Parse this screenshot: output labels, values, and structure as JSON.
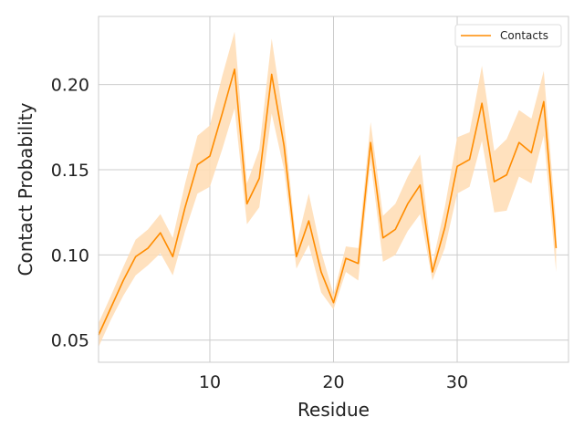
{
  "chart_data": {
    "type": "line",
    "xlabel": "Residue",
    "ylabel": "Contact Probability",
    "xlim": [
      1,
      39
    ],
    "ylim": [
      0.037,
      0.24
    ],
    "xticks": [
      10,
      20,
      30
    ],
    "xtick_labels": [
      "10",
      "20",
      "30"
    ],
    "yticks": [
      0.05,
      0.1,
      0.15,
      0.2
    ],
    "ytick_labels": [
      "0.05",
      "0.10",
      "0.15",
      "0.20"
    ],
    "grid": true,
    "legend_position": "top-right",
    "series": [
      {
        "name": "Contacts",
        "color": "#ff8c00",
        "band_color": "#ffdcb3",
        "x": [
          1,
          2,
          3,
          4,
          5,
          6,
          7,
          8,
          9,
          10,
          11,
          12,
          13,
          14,
          15,
          16,
          17,
          18,
          19,
          20,
          21,
          22,
          23,
          24,
          25,
          26,
          27,
          28,
          29,
          30,
          31,
          32,
          33,
          34,
          35,
          36,
          37,
          38
        ],
        "values": [
          0.053,
          0.069,
          0.085,
          0.099,
          0.104,
          0.113,
          0.099,
          0.128,
          0.153,
          0.158,
          0.183,
          0.209,
          0.13,
          0.145,
          0.206,
          0.164,
          0.099,
          0.12,
          0.09,
          0.072,
          0.098,
          0.095,
          0.166,
          0.11,
          0.115,
          0.13,
          0.141,
          0.09,
          0.116,
          0.152,
          0.156,
          0.189,
          0.143,
          0.147,
          0.166,
          0.16,
          0.19,
          0.104
        ],
        "lower": [
          0.046,
          0.062,
          0.076,
          0.088,
          0.094,
          0.101,
          0.088,
          0.114,
          0.136,
          0.14,
          0.162,
          0.186,
          0.118,
          0.128,
          0.183,
          0.15,
          0.092,
          0.106,
          0.078,
          0.068,
          0.09,
          0.085,
          0.155,
          0.096,
          0.1,
          0.114,
          0.124,
          0.085,
          0.104,
          0.136,
          0.14,
          0.167,
          0.125,
          0.126,
          0.146,
          0.142,
          0.17,
          0.09
        ],
        "upper": [
          0.06,
          0.076,
          0.093,
          0.109,
          0.115,
          0.124,
          0.11,
          0.142,
          0.17,
          0.176,
          0.205,
          0.231,
          0.142,
          0.162,
          0.227,
          0.178,
          0.106,
          0.136,
          0.102,
          0.077,
          0.105,
          0.104,
          0.178,
          0.123,
          0.13,
          0.146,
          0.159,
          0.095,
          0.128,
          0.169,
          0.172,
          0.211,
          0.161,
          0.168,
          0.185,
          0.18,
          0.208,
          0.118
        ]
      }
    ]
  }
}
